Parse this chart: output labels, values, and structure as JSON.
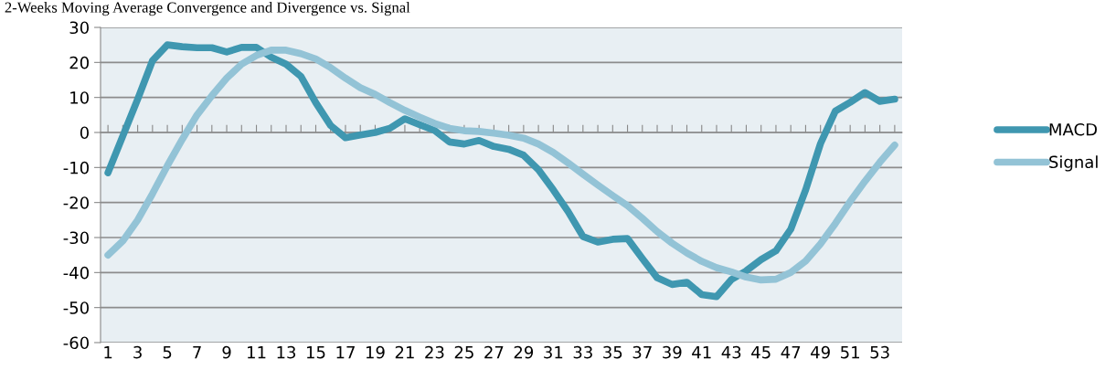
{
  "chart_data": {
    "type": "line",
    "title": "2-Weeks Moving Average Convergence and Divergence vs. Signal",
    "categories": [
      "1",
      null,
      "3",
      null,
      "5",
      null,
      "7",
      null,
      "9",
      null,
      "11",
      null,
      "13",
      null,
      "15",
      null,
      "17",
      null,
      "19",
      null,
      "21",
      null,
      "23",
      null,
      "25",
      null,
      "27",
      null,
      "29",
      null,
      "31",
      null,
      "33",
      null,
      "35",
      null,
      "37",
      null,
      "39",
      null,
      "41",
      null,
      "43",
      null,
      "45",
      null,
      "47",
      null,
      "49",
      null,
      "51",
      null,
      "53",
      null
    ],
    "series": [
      {
        "name": "MACD",
        "color": "#3f97b0",
        "values": [
          -11.5,
          -1,
          9.5,
          20.5,
          25,
          24.5,
          24.2,
          24.2,
          23,
          24.3,
          24.3,
          21.5,
          19.5,
          16,
          8.5,
          2,
          -1.5,
          -0.7,
          0,
          1.2,
          3.9,
          2.2,
          0.6,
          -2.7,
          -3.3,
          -2.3,
          -4,
          -4.8,
          -6.5,
          -10.6,
          -16.4,
          -22.6,
          -29.7,
          -31.3,
          -30.5,
          -30.3,
          -36,
          -41.5,
          -43.4,
          -42.8,
          -46.3,
          -46.9,
          -42,
          -39.5,
          -36.3,
          -33.8,
          -27.6,
          -16.4,
          -3.2,
          6.1,
          8.6,
          11.4,
          8.9,
          9.5
        ]
      },
      {
        "name": "Signal",
        "color": "#93c3d6",
        "values": [
          -35,
          -31,
          -25,
          -17.5,
          -9.5,
          -2,
          5,
          10.5,
          15.5,
          19.5,
          22,
          23.5,
          23.5,
          22.5,
          21,
          18.5,
          15.5,
          12.8,
          10.9,
          8.5,
          6.3,
          4.4,
          2.6,
          1.2,
          0.5,
          0.3,
          -0.2,
          -0.8,
          -1.6,
          -3.3,
          -5.7,
          -8.7,
          -11.9,
          -15,
          -18,
          -20.9,
          -24.5,
          -28.3,
          -31.6,
          -34.4,
          -36.8,
          -38.6,
          -39.8,
          -41.3,
          -42.1,
          -41.9,
          -40,
          -36.7,
          -31.8,
          -26,
          -19.7,
          -13.9,
          -8.5,
          -3.6
        ]
      }
    ],
    "ylim": [
      -60,
      30
    ],
    "yticks": [
      -60,
      -50,
      -40,
      -30,
      -20,
      -10,
      0,
      10,
      20,
      30
    ],
    "grid": "y",
    "legend": "right",
    "marker": "none",
    "line_style": "solid"
  }
}
